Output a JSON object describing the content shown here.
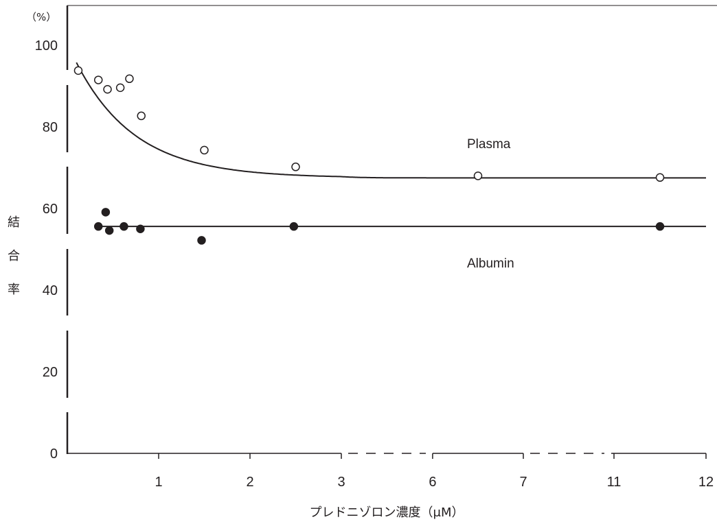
{
  "chart_data": {
    "type": "scatter",
    "title": "",
    "ylabel": "結合率",
    "ylabel_unit": "（%）",
    "xlabel": "プレドニゾロン濃度（μM）",
    "ylim": [
      0,
      100
    ],
    "y_ticks": [
      "0",
      "20",
      "40",
      "60",
      "80",
      "100"
    ],
    "x_ticks": [
      "1",
      "2",
      "3",
      "6",
      "7",
      "11",
      "12"
    ],
    "x_axis_note": "broken axis: dashed between 3–6 and 7–11",
    "grid": false,
    "series": [
      {
        "name": "Plasma",
        "marker": "open-circle",
        "fit": "decreasing curve toward ~67.5",
        "points": [
          {
            "x": 0.12,
            "y": 93.8
          },
          {
            "x": 0.34,
            "y": 91.5
          },
          {
            "x": 0.44,
            "y": 89.2
          },
          {
            "x": 0.58,
            "y": 89.6
          },
          {
            "x": 0.68,
            "y": 91.8
          },
          {
            "x": 0.81,
            "y": 82.7
          },
          {
            "x": 1.5,
            "y": 74.3
          },
          {
            "x": 2.5,
            "y": 70.2
          },
          {
            "x": 6.5,
            "y": 68.0
          },
          {
            "x": 11.5,
            "y": 67.6
          }
        ]
      },
      {
        "name": "Albumin",
        "marker": "filled-circle",
        "fit": "horizontal line at ~55.6",
        "points": [
          {
            "x": 0.34,
            "y": 55.6
          },
          {
            "x": 0.42,
            "y": 59.1
          },
          {
            "x": 0.46,
            "y": 54.6
          },
          {
            "x": 0.62,
            "y": 55.6
          },
          {
            "x": 0.8,
            "y": 55.0
          },
          {
            "x": 1.47,
            "y": 52.2
          },
          {
            "x": 2.48,
            "y": 55.6
          },
          {
            "x": 11.5,
            "y": 55.6
          }
        ]
      }
    ],
    "colors": {
      "ink": "#231f20",
      "background": "#ffffff"
    }
  }
}
